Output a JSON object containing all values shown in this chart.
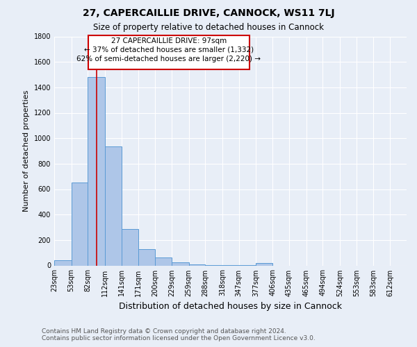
{
  "title": "27, CAPERCAILLIE DRIVE, CANNOCK, WS11 7LJ",
  "subtitle": "Size of property relative to detached houses in Cannock",
  "xlabel": "Distribution of detached houses by size in Cannock",
  "ylabel": "Number of detached properties",
  "footer_line1": "Contains HM Land Registry data © Crown copyright and database right 2024.",
  "footer_line2": "Contains public sector information licensed under the Open Government Licence v3.0.",
  "bins": [
    "23sqm",
    "53sqm",
    "82sqm",
    "112sqm",
    "141sqm",
    "171sqm",
    "200sqm",
    "229sqm",
    "259sqm",
    "288sqm",
    "318sqm",
    "347sqm",
    "377sqm",
    "406sqm",
    "435sqm",
    "465sqm",
    "494sqm",
    "524sqm",
    "553sqm",
    "583sqm",
    "612sqm"
  ],
  "values": [
    40,
    650,
    1480,
    935,
    285,
    130,
    62,
    22,
    8,
    5,
    5,
    5,
    18,
    0,
    0,
    0,
    0,
    0,
    0,
    0
  ],
  "bar_color": "#aec6e8",
  "bar_edge_color": "#5b9bd5",
  "bg_color": "#e8eef7",
  "grid_color": "#d0d8e8",
  "annotation_box_color": "#ffffff",
  "annotation_box_edge": "#cc0000",
  "annotation_text_line1": "27 CAPERCAILLIE DRIVE: 97sqm",
  "annotation_text_line2": "← 37% of detached houses are smaller (1,332)",
  "annotation_text_line3": "62% of semi-detached houses are larger (2,220) →",
  "redline_x": 97,
  "ylim": [
    0,
    1800
  ],
  "yticks": [
    0,
    200,
    400,
    600,
    800,
    1000,
    1200,
    1400,
    1600,
    1800
  ],
  "bin_starts": [
    23,
    53,
    82,
    112,
    141,
    171,
    200,
    229,
    259,
    288,
    318,
    347,
    377,
    406,
    435,
    465,
    494,
    524,
    553,
    583
  ],
  "last_tick": 612,
  "title_fontsize": 10,
  "subtitle_fontsize": 8.5,
  "ylabel_fontsize": 8,
  "xlabel_fontsize": 9,
  "footer_fontsize": 6.5,
  "tick_fontsize": 7
}
